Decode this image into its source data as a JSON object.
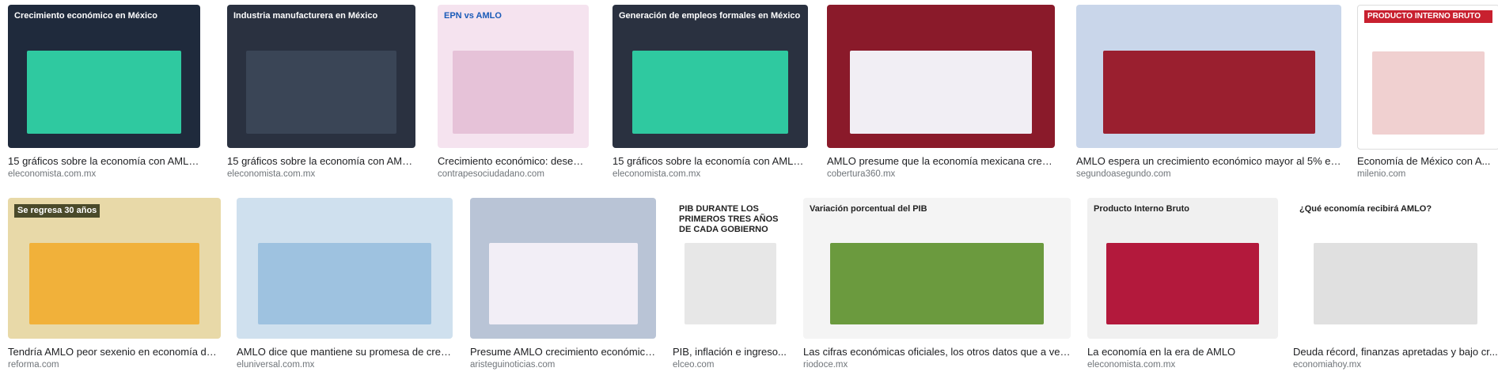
{
  "results": [
    {
      "thumb_title": "Crecimiento económico en México",
      "caption": "15 gráficos sobre la economía con AMLO ...",
      "source": "eleconomista.com.mx"
    },
    {
      "thumb_title": "Industria manufacturera en México",
      "caption": "15 gráficos sobre la economía con AMLO ...",
      "source": "eleconomista.com.mx"
    },
    {
      "thumb_title": "EPN vs AMLO",
      "caption": "Crecimiento económico: desem...",
      "source": "contrapesociudadano.com"
    },
    {
      "thumb_title": "Generación de empleos formales en México",
      "caption": "15 gráficos sobre la economía con AMLO ...",
      "source": "eleconomista.com.mx"
    },
    {
      "caption": "AMLO presume que la economía mexicana creció ...",
      "source": "cobertura360.mx"
    },
    {
      "caption": "AMLO espera un crecimiento económico mayor al 5% en ...",
      "source": "segundoasegundo.com"
    },
    {
      "thumb_title": "PRODUCTO INTERNO BRUTO",
      "caption": "Economía de México con A...",
      "source": "milenio.com"
    },
    {
      "thumb_title": "Se regresa 30 años",
      "caption": "Tendría AMLO peor sexenio en economía des...",
      "source": "reforma.com"
    },
    {
      "caption": "AMLO dice que mantiene su promesa de crece...",
      "source": "eluniversal.com.mx"
    },
    {
      "caption": "Presume AMLO crecimiento económico...",
      "source": "aristeguinoticias.com"
    },
    {
      "thumb_title": "PIB DURANTE LOS PRIMEROS TRES AÑOS DE CADA GOBIERNO",
      "caption": "PIB, inflación e ingreso...",
      "source": "elceo.com"
    },
    {
      "thumb_title": "Variación porcentual del PIB",
      "caption": "Las cifras económicas oficiales, los otros datos que a vec...",
      "source": "riodoce.mx"
    },
    {
      "thumb_title": "Producto Interno Bruto",
      "caption": "La economía en la era de AMLO",
      "source": "eleconomista.com.mx"
    },
    {
      "thumb_title": "¿Qué economía recibirá AMLO?",
      "caption": "Deuda récord, finanzas apretadas y bajo cr...",
      "source": "economiahoy.mx"
    }
  ]
}
